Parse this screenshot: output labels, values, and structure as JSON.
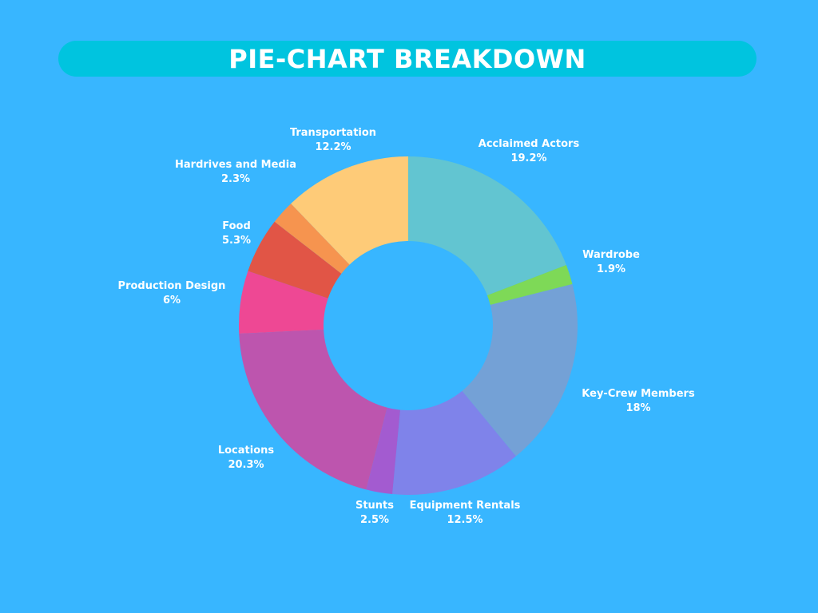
{
  "header": {
    "title": "PIE-CHART BREAKDOWN"
  },
  "chart_data": {
    "type": "pie",
    "title": "PIE-CHART BREAKDOWN",
    "donut": true,
    "legend": "none",
    "start_angle_deg": 0,
    "direction": "clockwise",
    "slices": [
      {
        "label": "Acclaimed Actors",
        "value": 19.2,
        "value_label": "19.2%",
        "color": "#62c5d1"
      },
      {
        "label": "Wardrobe",
        "value": 1.9,
        "value_label": "1.9%",
        "color": "#7ed957"
      },
      {
        "label": "Key-Crew Members",
        "value": 18,
        "value_label": "18%",
        "color": "#74a1d6"
      },
      {
        "label": "Equipment Rentals",
        "value": 12.5,
        "value_label": "12.5%",
        "color": "#7f83ea"
      },
      {
        "label": "Stunts",
        "value": 2.5,
        "value_label": "2.5%",
        "color": "#a35bd0"
      },
      {
        "label": "Locations",
        "value": 20.3,
        "value_label": "20.3%",
        "color": "#bd55ae"
      },
      {
        "label": "Production Design",
        "value": 6,
        "value_label": "6%",
        "color": "#ee4894"
      },
      {
        "label": "Food",
        "value": 5.3,
        "value_label": "5.3%",
        "color": "#e15546"
      },
      {
        "label": "Hardrives and Media",
        "value": 2.3,
        "value_label": "2.3%",
        "color": "#f6944f"
      },
      {
        "label": "Transportation",
        "value": 12.2,
        "value_label": "12.2%",
        "color": "#fecb78"
      }
    ]
  }
}
